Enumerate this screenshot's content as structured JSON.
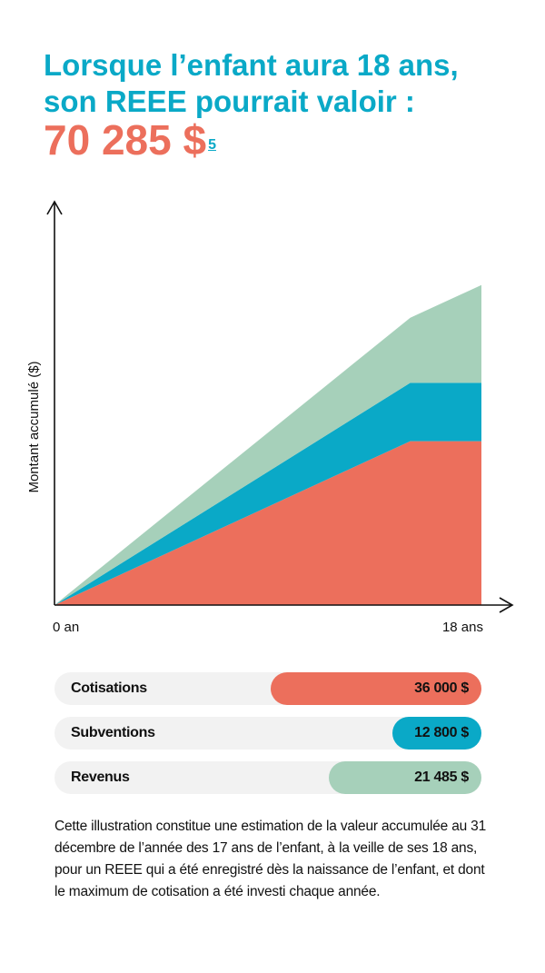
{
  "header": {
    "line1": "Lorsque l’enfant aura 18 ans,",
    "line2": "son REEE pourrait valoir :",
    "amount": "70 285 $",
    "footnote": "5"
  },
  "colors": {
    "title": "#0AA9C7",
    "amount": "#EC6F5C",
    "cotisations": "#EC6F5C",
    "subventions": "#0AA9C7",
    "revenus": "#A6D0BA",
    "track": "#F2F2F2"
  },
  "chart_data": {
    "type": "area",
    "stacked": true,
    "ylabel": "Montant accumulé ($)",
    "x": [
      0,
      15,
      18
    ],
    "x_tick_labels": [
      "0 an",
      "18 ans"
    ],
    "x_tick_positions": [
      0,
      18
    ],
    "xlim": [
      0,
      18
    ],
    "ylim": [
      0,
      83000
    ],
    "grid": false,
    "series": [
      {
        "name": "Cotisations",
        "color": "#EC6F5C",
        "values": [
          0,
          36000,
          36000
        ]
      },
      {
        "name": "Subventions",
        "color": "#0AA9C7",
        "values": [
          0,
          12800,
          12800
        ]
      },
      {
        "name": "Revenus",
        "color": "#A6D0BA",
        "values": [
          0,
          14300,
          21485
        ]
      }
    ]
  },
  "breakdown": [
    {
      "label": "Cotisations",
      "value": "36 000 $",
      "amount": 36000,
      "color": "#EC6F5C"
    },
    {
      "label": "Subventions",
      "value": "12 800 $",
      "amount": 12800,
      "color": "#0AA9C7"
    },
    {
      "label": "Revenus",
      "value": "21 485 $",
      "amount": 21485,
      "color": "#A6D0BA"
    }
  ],
  "note": "Cette illustration constitue une estimation de la valeur accumulée au 31 décembre de l’année des 17 ans de l’enfant, à la veille de ses 18 ans, pour un REEE qui a été enregistré dès la naissance de l’enfant, et dont le maximum de cotisation a été investi chaque année."
}
